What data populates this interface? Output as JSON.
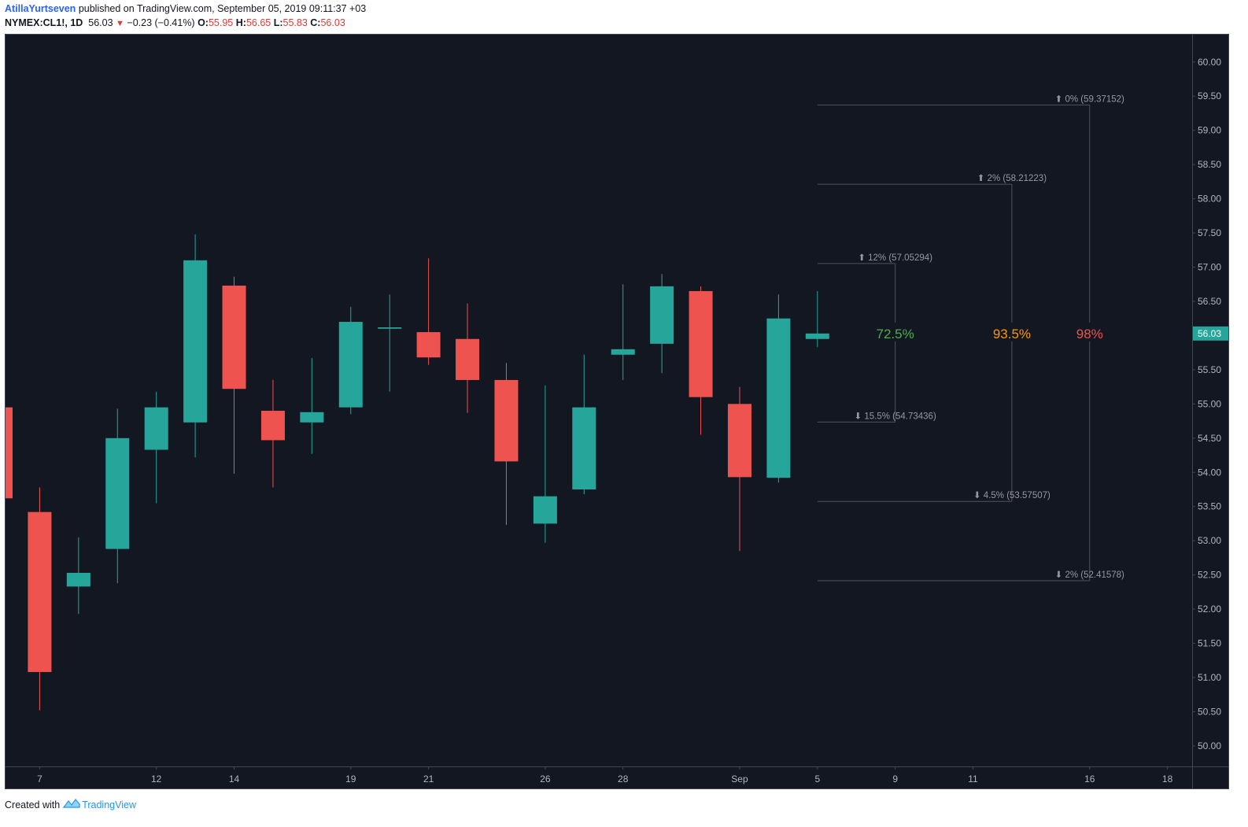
{
  "header": {
    "author": "AtillaYurtseven",
    "published": "published on TradingView.com, September 05, 2019 09:11:37 +03",
    "symbol": "NYMEX:CL1!, 1D",
    "last": "56.03",
    "change": "−0.23 (−0.41%)",
    "o_label": "O:",
    "o_value": "55.95",
    "h_label": "H:",
    "h_value": "56.65",
    "l_label": "L:",
    "l_value": "55.83",
    "c_label": "C:",
    "c_value": "56.03"
  },
  "footer": {
    "created_with": "Created with",
    "brand": "TradingView"
  },
  "colors": {
    "background": "#131722",
    "up": "#26a69a",
    "down": "#ef5350",
    "axis_text": "#b2b5be",
    "price_badge": "#26a69a",
    "grid_line": "#3a3e4a"
  },
  "chart_data": {
    "type": "candlestick",
    "symbol": "NYMEX:CL1!",
    "interval": "1D",
    "ylim": [
      49.7,
      60.4
    ],
    "y_ticks": [
      "50.00",
      "50.50",
      "51.00",
      "51.50",
      "52.00",
      "52.50",
      "53.00",
      "53.50",
      "54.00",
      "54.50",
      "55.00",
      "55.50",
      "56.00",
      "56.50",
      "57.00",
      "57.50",
      "58.00",
      "58.50",
      "59.00",
      "59.50",
      "60.00"
    ],
    "x_ticks": [
      {
        "i": 1,
        "label": "7"
      },
      {
        "i": 4,
        "label": "12"
      },
      {
        "i": 6,
        "label": "14"
      },
      {
        "i": 9,
        "label": "19"
      },
      {
        "i": 11,
        "label": "21"
      },
      {
        "i": 14,
        "label": "26"
      },
      {
        "i": 16,
        "label": "28"
      },
      {
        "i": 19,
        "label": "Sep"
      },
      {
        "i": 21,
        "label": "5"
      },
      {
        "i": 23,
        "label": "9"
      },
      {
        "i": 25,
        "label": "11"
      },
      {
        "i": 28,
        "label": "16"
      },
      {
        "i": 30,
        "label": "18"
      }
    ],
    "candles": [
      {
        "i": 0,
        "o": 54.95,
        "h": 54.95,
        "l": 53.6,
        "c": 53.62
      },
      {
        "i": 1,
        "o": 53.42,
        "h": 53.78,
        "l": 50.52,
        "c": 51.08
      },
      {
        "i": 2,
        "o": 52.33,
        "h": 53.05,
        "l": 51.93,
        "c": 52.53
      },
      {
        "i": 3,
        "o": 52.88,
        "h": 54.93,
        "l": 52.38,
        "c": 54.5
      },
      {
        "i": 4,
        "o": 54.33,
        "h": 55.18,
        "l": 53.55,
        "c": 54.95
      },
      {
        "i": 5,
        "o": 54.73,
        "h": 57.48,
        "l": 54.22,
        "c": 57.1
      },
      {
        "i": 6,
        "o": 56.73,
        "h": 56.86,
        "l": 53.98,
        "c": 55.22
      },
      {
        "i": 7,
        "o": 54.9,
        "h": 55.35,
        "l": 53.78,
        "c": 54.47
      },
      {
        "i": 8,
        "o": 54.73,
        "h": 55.67,
        "l": 54.27,
        "c": 54.88
      },
      {
        "i": 9,
        "o": 54.95,
        "h": 56.42,
        "l": 54.85,
        "c": 56.2
      },
      {
        "i": 10,
        "o": 56.1,
        "h": 56.6,
        "l": 55.18,
        "c": 56.12
      },
      {
        "i": 11,
        "o": 56.05,
        "h": 57.13,
        "l": 55.57,
        "c": 55.68
      },
      {
        "i": 12,
        "o": 55.95,
        "h": 56.47,
        "l": 54.87,
        "c": 55.35
      },
      {
        "i": 13,
        "o": 55.35,
        "h": 55.6,
        "l": 53.23,
        "c": 54.16
      },
      {
        "i": 14,
        "o": 53.25,
        "h": 55.27,
        "l": 52.97,
        "c": 53.65
      },
      {
        "i": 15,
        "o": 53.75,
        "h": 55.72,
        "l": 53.68,
        "c": 54.95
      },
      {
        "i": 16,
        "o": 55.72,
        "h": 56.75,
        "l": 55.35,
        "c": 55.8
      },
      {
        "i": 17,
        "o": 55.88,
        "h": 56.9,
        "l": 55.45,
        "c": 56.72
      },
      {
        "i": 18,
        "o": 56.65,
        "h": 56.72,
        "l": 54.55,
        "c": 55.1
      },
      {
        "i": 19,
        "o": 55.0,
        "h": 55.25,
        "l": 52.85,
        "c": 53.93
      },
      {
        "i": 20,
        "o": 53.92,
        "h": 56.6,
        "l": 53.85,
        "c": 56.25
      },
      {
        "i": 21,
        "o": 55.95,
        "h": 56.65,
        "l": 55.83,
        "c": 56.03
      }
    ],
    "last_price": {
      "value": 56.03,
      "label": "56.03"
    },
    "probability_cones": [
      {
        "center_i": 23,
        "start_i": 21,
        "percent_label": "72.5%",
        "color": "#4caf50",
        "upper": {
          "value": 57.05294,
          "label": "12% (57.05294)"
        },
        "lower": {
          "value": 54.73436,
          "label": "15.5% (54.73436)"
        }
      },
      {
        "center_i": 26,
        "start_i": 21,
        "percent_label": "93.5%",
        "color": "#ff9800",
        "upper": {
          "value": 58.21223,
          "label": "2% (58.21223)"
        },
        "lower": {
          "value": 53.57507,
          "label": "4.5% (53.57507)"
        }
      },
      {
        "center_i": 28,
        "start_i": 21,
        "percent_label": "98%",
        "color": "#ef5350",
        "upper": {
          "value": 59.37152,
          "label": "0% (59.37152)"
        },
        "lower": {
          "value": 52.41578,
          "label": "2% (52.41578)"
        }
      }
    ]
  }
}
